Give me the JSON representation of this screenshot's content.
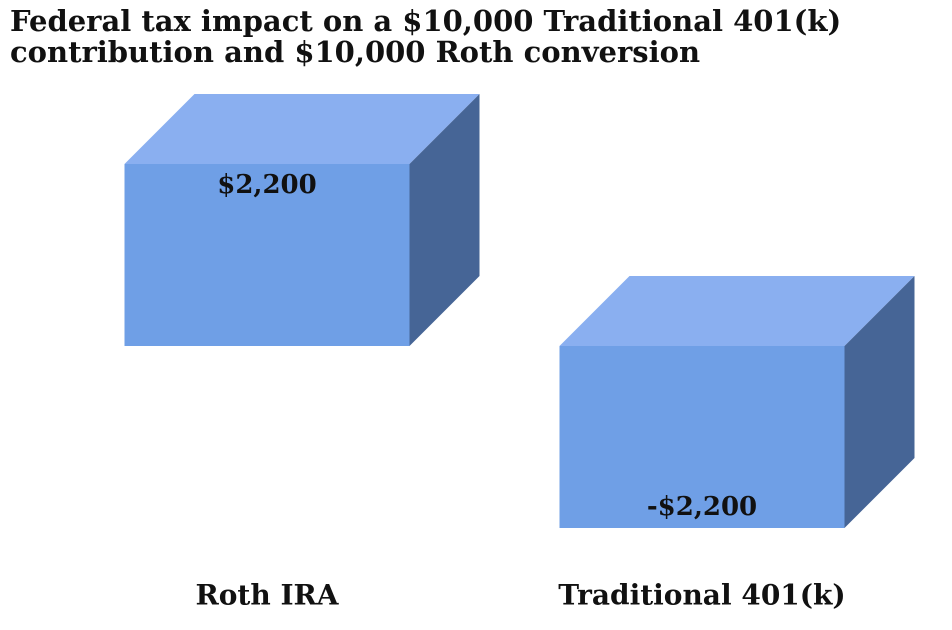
{
  "chart_data": {
    "type": "bar3d",
    "title": "Federal tax impact on a $10,000 Traditional 401(k) contribution and $10,000 Roth conversion",
    "categories": [
      "Roth IRA",
      "Traditional 401(k)"
    ],
    "values": [
      2200,
      -2200
    ],
    "value_labels": [
      "$2,200",
      "-$2,200"
    ],
    "color": "#6f9fe6"
  }
}
